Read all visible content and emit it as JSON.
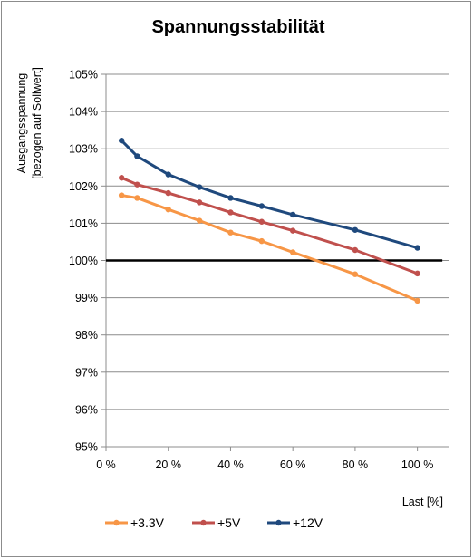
{
  "chart_data": {
    "type": "line",
    "title": "Spannungsstabilität",
    "xlabel": "Last [%]",
    "ylabel_line1": "Ausgangsspannung",
    "ylabel_line2": "[bezogen auf Sollwert]",
    "xlim": [
      0,
      110
    ],
    "ylim": [
      95,
      105
    ],
    "x_ticks": [
      0,
      20,
      40,
      60,
      80,
      100
    ],
    "x_tick_labels": [
      "0 %",
      "20 %",
      "40 %",
      "60 %",
      "80 %",
      "100 %"
    ],
    "y_ticks": [
      95,
      96,
      97,
      98,
      99,
      100,
      101,
      102,
      103,
      104,
      105
    ],
    "y_tick_labels": [
      "95%",
      "96%",
      "97%",
      "98%",
      "99%",
      "100%",
      "101%",
      "102%",
      "103%",
      "104%",
      "105%"
    ],
    "grid": "horizontal",
    "legend_position": "bottom-left",
    "reference_line": {
      "y": 100,
      "color": "#000000"
    },
    "series": [
      {
        "name": "+3.3V",
        "color": "#f79646",
        "points": [
          [
            5,
            101.75
          ],
          [
            10,
            101.68
          ],
          [
            20,
            101.37
          ],
          [
            30,
            101.07
          ],
          [
            40,
            100.75
          ],
          [
            50,
            100.52
          ],
          [
            60,
            100.22
          ],
          [
            80,
            99.63
          ],
          [
            100,
            98.92
          ]
        ]
      },
      {
        "name": "+5V",
        "color": "#c0504d",
        "points": [
          [
            5,
            102.22
          ],
          [
            10,
            102.04
          ],
          [
            20,
            101.81
          ],
          [
            30,
            101.56
          ],
          [
            40,
            101.29
          ],
          [
            50,
            101.04
          ],
          [
            60,
            100.8
          ],
          [
            80,
            100.28
          ],
          [
            100,
            99.65
          ]
        ]
      },
      {
        "name": "+12V",
        "color": "#1f497d",
        "points": [
          [
            5,
            103.22
          ],
          [
            10,
            102.8
          ],
          [
            20,
            102.31
          ],
          [
            30,
            101.97
          ],
          [
            40,
            101.68
          ],
          [
            50,
            101.46
          ],
          [
            60,
            101.23
          ],
          [
            80,
            100.82
          ],
          [
            100,
            100.34
          ]
        ]
      }
    ]
  }
}
